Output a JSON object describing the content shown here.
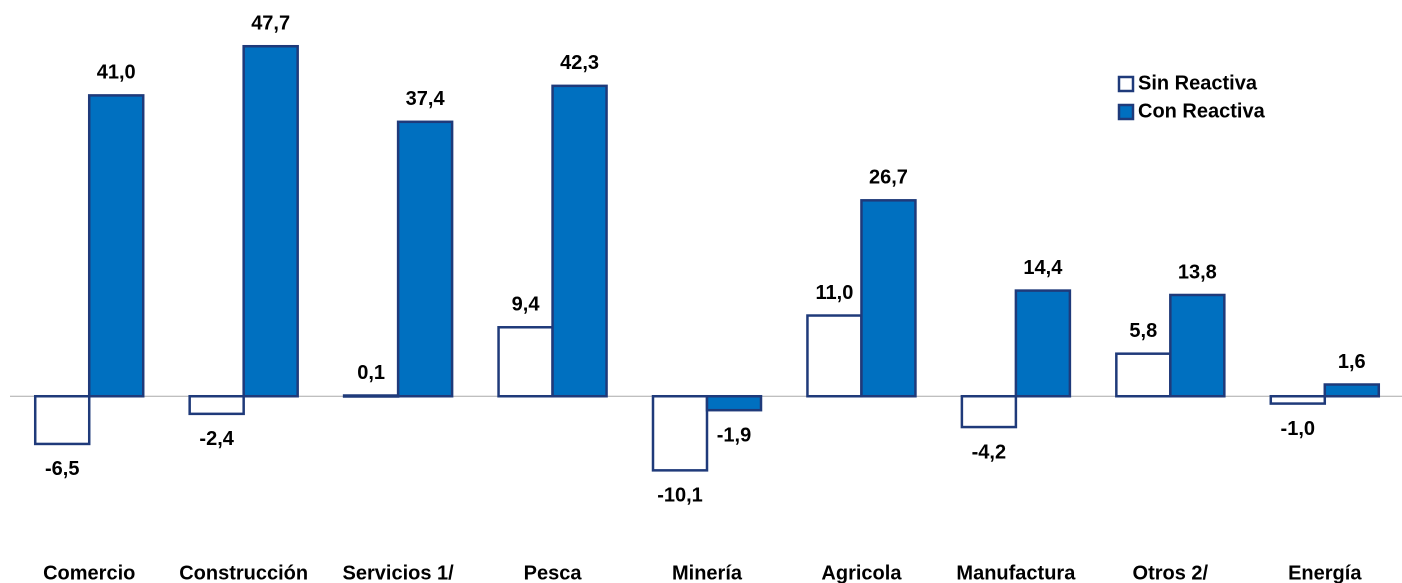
{
  "chart_data": {
    "type": "bar",
    "categories": [
      "Comercio",
      "Construcción",
      "Servicios 1/",
      "Pesca",
      "Minería",
      "Agricola",
      "Manufactura",
      "Otros 2/",
      "Energía"
    ],
    "series": [
      {
        "name": "Sin Reactiva",
        "color": "#ffffff",
        "values": [
          -6.5,
          -2.4,
          0.1,
          9.4,
          -10.1,
          11.0,
          -4.2,
          5.8,
          -1.0
        ],
        "value_labels": [
          "-6,5",
          "-2,4",
          "0,1",
          "9,4",
          "-10,1",
          "11,0",
          "-4,2",
          "5,8",
          "-1,0"
        ]
      },
      {
        "name": "Con Reactiva",
        "color": "#0070c0",
        "values": [
          41.0,
          47.7,
          37.4,
          42.3,
          -1.9,
          26.7,
          14.4,
          13.8,
          1.6
        ],
        "value_labels": [
          "41,0",
          "47,7",
          "37,4",
          "42,3",
          "-1,9",
          "26,7",
          "14,4",
          "13,8",
          "1,6"
        ]
      }
    ],
    "ylim": [
      -20,
      54
    ],
    "legend": "upper right"
  }
}
